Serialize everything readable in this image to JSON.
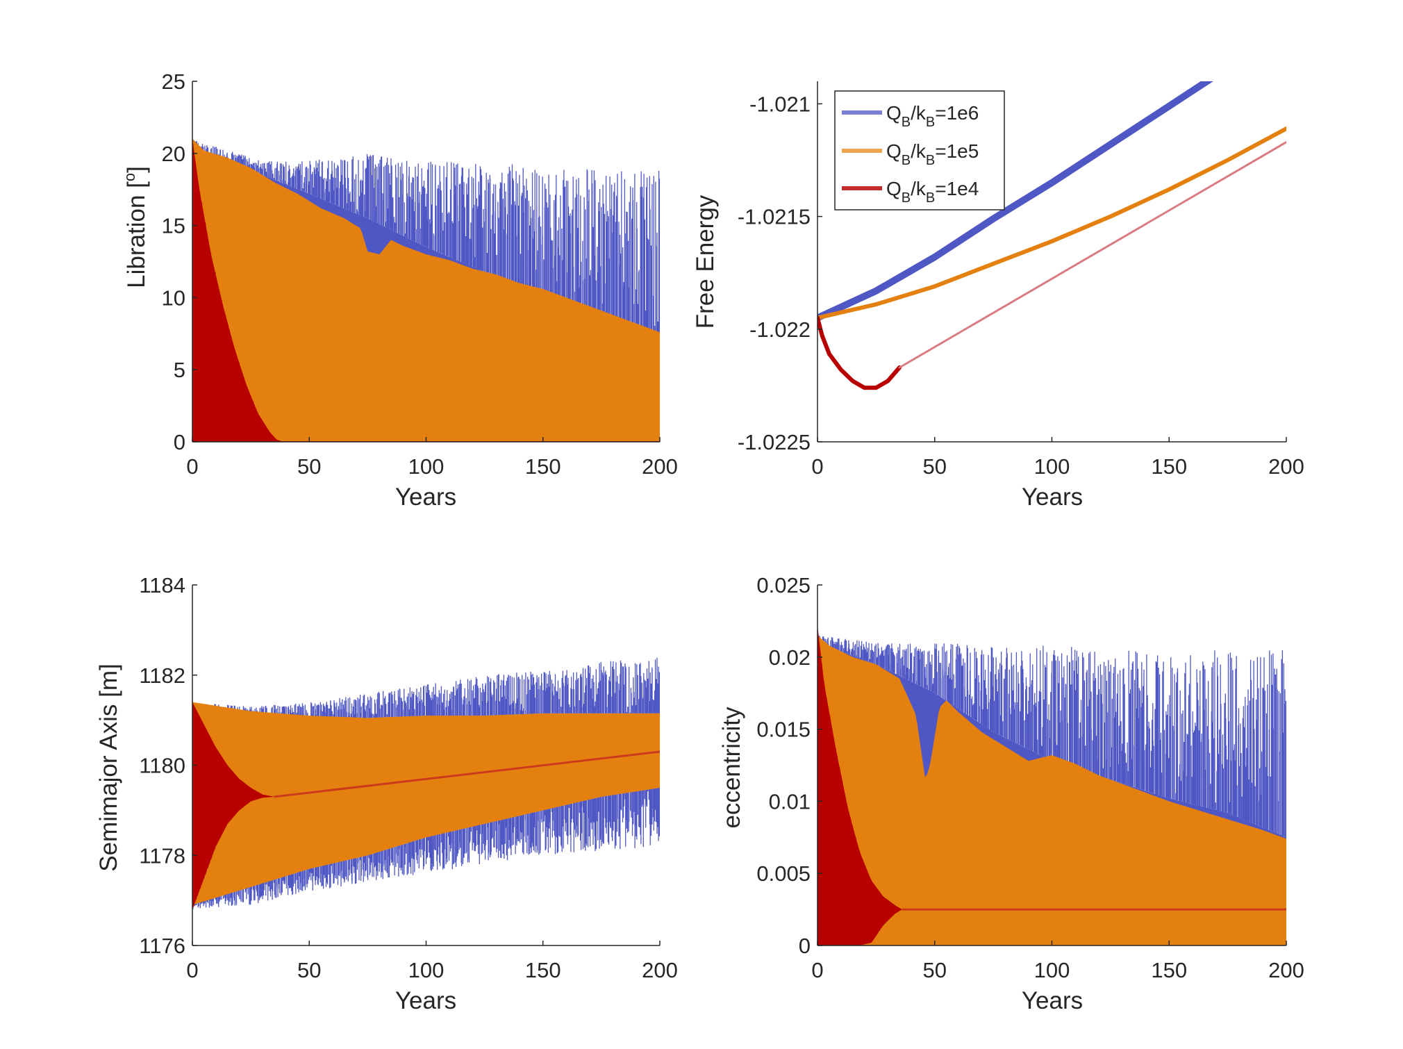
{
  "chart_data": [
    {
      "id": "libration",
      "type": "line",
      "xlabel": "Years",
      "ylabel": "Libration [",
      "ylabel_sup": "o",
      "ylabel_end": "]",
      "xlim": [
        0,
        200
      ],
      "ylim": [
        0,
        25
      ],
      "xticks": [
        "0",
        "50",
        "100",
        "150",
        "200"
      ],
      "yticks": [
        "0",
        "5",
        "10",
        "15",
        "20",
        "25"
      ],
      "series": [
        {
          "key": "1e6",
          "style": "band",
          "x": [
            0,
            10,
            30,
            50,
            75,
            100,
            125,
            150,
            175,
            200
          ],
          "lower": [
            0,
            0,
            0,
            0,
            0,
            0,
            0,
            0,
            0,
            0
          ],
          "upper": [
            21.0,
            20.5,
            19.5,
            19.5,
            20.0,
            19.5,
            19.5,
            19.0,
            19.0,
            19.0
          ],
          "baseline": [
            20.5,
            19.5,
            18.5,
            17.2,
            15.5,
            13.5,
            11.8,
            10.3,
            8.8,
            7.5
          ]
        },
        {
          "key": "1e5",
          "style": "band",
          "x": [
            0,
            5,
            15,
            25,
            35,
            45,
            55,
            65,
            72,
            75,
            80,
            85,
            90,
            100,
            110,
            120,
            130,
            140,
            150,
            160,
            170,
            180,
            190,
            200
          ],
          "lower": [
            0,
            0,
            0,
            0,
            0,
            0,
            0,
            0,
            0,
            0,
            0,
            0,
            0,
            0,
            0,
            0,
            0,
            0,
            0,
            0,
            0,
            0,
            0,
            0
          ],
          "upper": [
            21.0,
            20.2,
            19.7,
            19.0,
            18.0,
            17.2,
            16.2,
            15.5,
            14.8,
            13.2,
            13.0,
            14.0,
            13.6,
            13.0,
            12.6,
            12.0,
            11.6,
            11.0,
            10.6,
            10.0,
            9.4,
            8.8,
            8.2,
            7.6
          ]
        },
        {
          "key": "1e4",
          "style": "band",
          "x": [
            0,
            3,
            8,
            13,
            18,
            23,
            28,
            33,
            36,
            38,
            200
          ],
          "lower": [
            0,
            0,
            0,
            0,
            0,
            0,
            0,
            0,
            0,
            0,
            0
          ],
          "upper": [
            21.0,
            17.5,
            13.0,
            9.5,
            6.5,
            4.0,
            2.0,
            0.7,
            0.15,
            0.05,
            0.05
          ]
        }
      ]
    },
    {
      "id": "free-energy",
      "type": "line",
      "xlabel": "Years",
      "ylabel": "Free Energy",
      "xlim": [
        0,
        200
      ],
      "ylim": [
        -1.0225,
        -1.0209
      ],
      "xticks": [
        "0",
        "50",
        "100",
        "150",
        "200"
      ],
      "yticks": [
        "-1.0225",
        "-1.022",
        "-1.0215",
        "-1.021"
      ],
      "ytick_values": [
        -1.0225,
        -1.022,
        -1.0215,
        -1.021
      ],
      "legend_position": "top-left",
      "series": [
        {
          "key": "1e6",
          "style": "thick",
          "x": [
            0,
            25,
            50,
            75,
            100,
            125,
            150,
            175,
            200
          ],
          "y": [
            -1.02195,
            -1.02183,
            -1.02168,
            -1.02151,
            -1.02135,
            -1.02118,
            -1.02101,
            -1.02084,
            -1.02067
          ],
          "width": 10
        },
        {
          "key": "1e5",
          "style": "thick",
          "x": [
            0,
            25,
            50,
            75,
            100,
            125,
            150,
            175,
            200
          ],
          "y": [
            -1.02195,
            -1.02189,
            -1.02181,
            -1.02171,
            -1.02161,
            -1.0215,
            -1.02138,
            -1.02125,
            -1.02111
          ],
          "width": 6
        },
        {
          "key": "1e4",
          "style": "thick",
          "x": [
            0,
            2,
            5,
            10,
            15,
            20,
            25,
            30,
            35
          ],
          "y": [
            -1.02195,
            -1.02203,
            -1.02211,
            -1.02218,
            -1.02223,
            -1.02226,
            -1.02226,
            -1.02223,
            -1.02217
          ],
          "width": 6
        },
        {
          "key": "1e4",
          "style": "thin",
          "x": [
            35,
            200
          ],
          "y": [
            -1.02217,
            -1.02117
          ],
          "width": 3
        }
      ]
    },
    {
      "id": "semimajor-axis",
      "type": "line",
      "xlabel": "Years",
      "ylabel": "Semimajor Axis [m]",
      "xlim": [
        0,
        200
      ],
      "ylim": [
        1176,
        1184
      ],
      "xticks": [
        "0",
        "50",
        "100",
        "150",
        "200"
      ],
      "yticks": [
        "1176",
        "1178",
        "1180",
        "1182",
        "1184"
      ],
      "series": [
        {
          "key": "1e6",
          "style": "band",
          "x": [
            0,
            25,
            50,
            75,
            100,
            125,
            150,
            175,
            200
          ],
          "upper": [
            1181.4,
            1181.3,
            1181.4,
            1181.6,
            1181.8,
            1182.0,
            1182.1,
            1182.3,
            1182.4
          ],
          "lower": [
            1176.8,
            1176.9,
            1177.2,
            1177.4,
            1177.6,
            1177.8,
            1178.0,
            1178.1,
            1178.2
          ],
          "baseline_upper": [
            1181.1,
            1181.0,
            1181.0,
            1181.05,
            1181.1,
            1181.1,
            1181.15,
            1181.15,
            1181.15
          ],
          "baseline_lower": [
            1177.0,
            1177.3,
            1177.7,
            1178.0,
            1178.4,
            1178.7,
            1179.0,
            1179.3,
            1179.5
          ]
        },
        {
          "key": "1e5",
          "style": "band",
          "x": [
            0,
            25,
            50,
            75,
            100,
            125,
            150,
            175,
            200
          ],
          "upper": [
            1181.4,
            1181.2,
            1181.1,
            1181.05,
            1181.1,
            1181.1,
            1181.15,
            1181.15,
            1181.15
          ],
          "lower": [
            1176.9,
            1177.3,
            1177.7,
            1178.0,
            1178.4,
            1178.7,
            1179.0,
            1179.3,
            1179.5
          ]
        },
        {
          "key": "1e4",
          "style": "band",
          "x": [
            0,
            5,
            10,
            15,
            20,
            25,
            30,
            35,
            200
          ],
          "upper": [
            1181.4,
            1180.9,
            1180.4,
            1180.0,
            1179.7,
            1179.5,
            1179.35,
            1179.3,
            1180.3
          ],
          "lower": [
            1176.8,
            1177.5,
            1178.2,
            1178.7,
            1179.0,
            1179.2,
            1179.28,
            1179.3,
            1180.3
          ]
        }
      ]
    },
    {
      "id": "eccentricity",
      "type": "line",
      "xlabel": "Years",
      "ylabel": "eccentricity",
      "xlim": [
        0,
        200
      ],
      "ylim": [
        0,
        0.025
      ],
      "xticks": [
        "0",
        "50",
        "100",
        "150",
        "200"
      ],
      "yticks": [
        "0",
        "0.005",
        "0.01",
        "0.015",
        "0.02",
        "0.025"
      ],
      "series": [
        {
          "key": "1e6",
          "style": "band",
          "x": [
            0,
            25,
            50,
            75,
            100,
            125,
            150,
            175,
            200
          ],
          "lower": [
            0,
            0,
            0,
            0,
            0,
            0,
            0,
            0,
            0
          ],
          "upper": [
            0.0215,
            0.021,
            0.021,
            0.0208,
            0.0208,
            0.0206,
            0.0205,
            0.0205,
            0.0205
          ],
          "baseline": [
            0.021,
            0.0195,
            0.0175,
            0.0148,
            0.0128,
            0.0115,
            0.0102,
            0.0092,
            0.0075
          ]
        },
        {
          "key": "1e5",
          "style": "band",
          "x": [
            0,
            5,
            15,
            25,
            35,
            42,
            46,
            48,
            52,
            55,
            60,
            70,
            80,
            90,
            100,
            110,
            120,
            130,
            140,
            150,
            160,
            170,
            180,
            190,
            200
          ],
          "lower": [
            0,
            0,
            0,
            0,
            0,
            0,
            0,
            0,
            0,
            0,
            0,
            0,
            0,
            0,
            0,
            0,
            0,
            0,
            0,
            0,
            0,
            0,
            0,
            0,
            0
          ],
          "upper": [
            0.0215,
            0.0208,
            0.02,
            0.0195,
            0.0185,
            0.016,
            0.0115,
            0.0125,
            0.0165,
            0.017,
            0.0162,
            0.0148,
            0.0138,
            0.0128,
            0.0132,
            0.0126,
            0.0118,
            0.0112,
            0.0106,
            0.01,
            0.0095,
            0.009,
            0.0085,
            0.008,
            0.0074
          ]
        },
        {
          "key": "1e4",
          "style": "band",
          "x": [
            0,
            3,
            8,
            13,
            18,
            23,
            28,
            33,
            36,
            200
          ],
          "lower": [
            0,
            0,
            0,
            0,
            0,
            0.0002,
            0.0014,
            0.0022,
            0.0025,
            0.0025
          ],
          "upper": [
            0.0222,
            0.018,
            0.0135,
            0.0095,
            0.0065,
            0.0045,
            0.0034,
            0.0028,
            0.0025,
            0.0025
          ]
        }
      ]
    }
  ],
  "legend": {
    "entries": [
      {
        "key": "1e6",
        "base": "Q",
        "sub1": "B",
        "mid": "/k",
        "sub2": "B",
        "value": "=1e6"
      },
      {
        "key": "1e5",
        "base": "Q",
        "sub1": "B",
        "mid": "/k",
        "sub2": "B",
        "value": "=1e5"
      },
      {
        "key": "1e4",
        "base": "Q",
        "sub1": "B",
        "mid": "/k",
        "sub2": "B",
        "value": "=1e4"
      }
    ]
  },
  "colors": {
    "1e6": "#4f57c4",
    "1e5": "#e4800f",
    "1e4": "#b80000",
    "1e4_thin": "#d97b82",
    "1e6_legend": "#7a7fd6",
    "1e5_legend": "#eea54f",
    "1e4_legend": "#c42b2b",
    "axis": "#262626"
  }
}
